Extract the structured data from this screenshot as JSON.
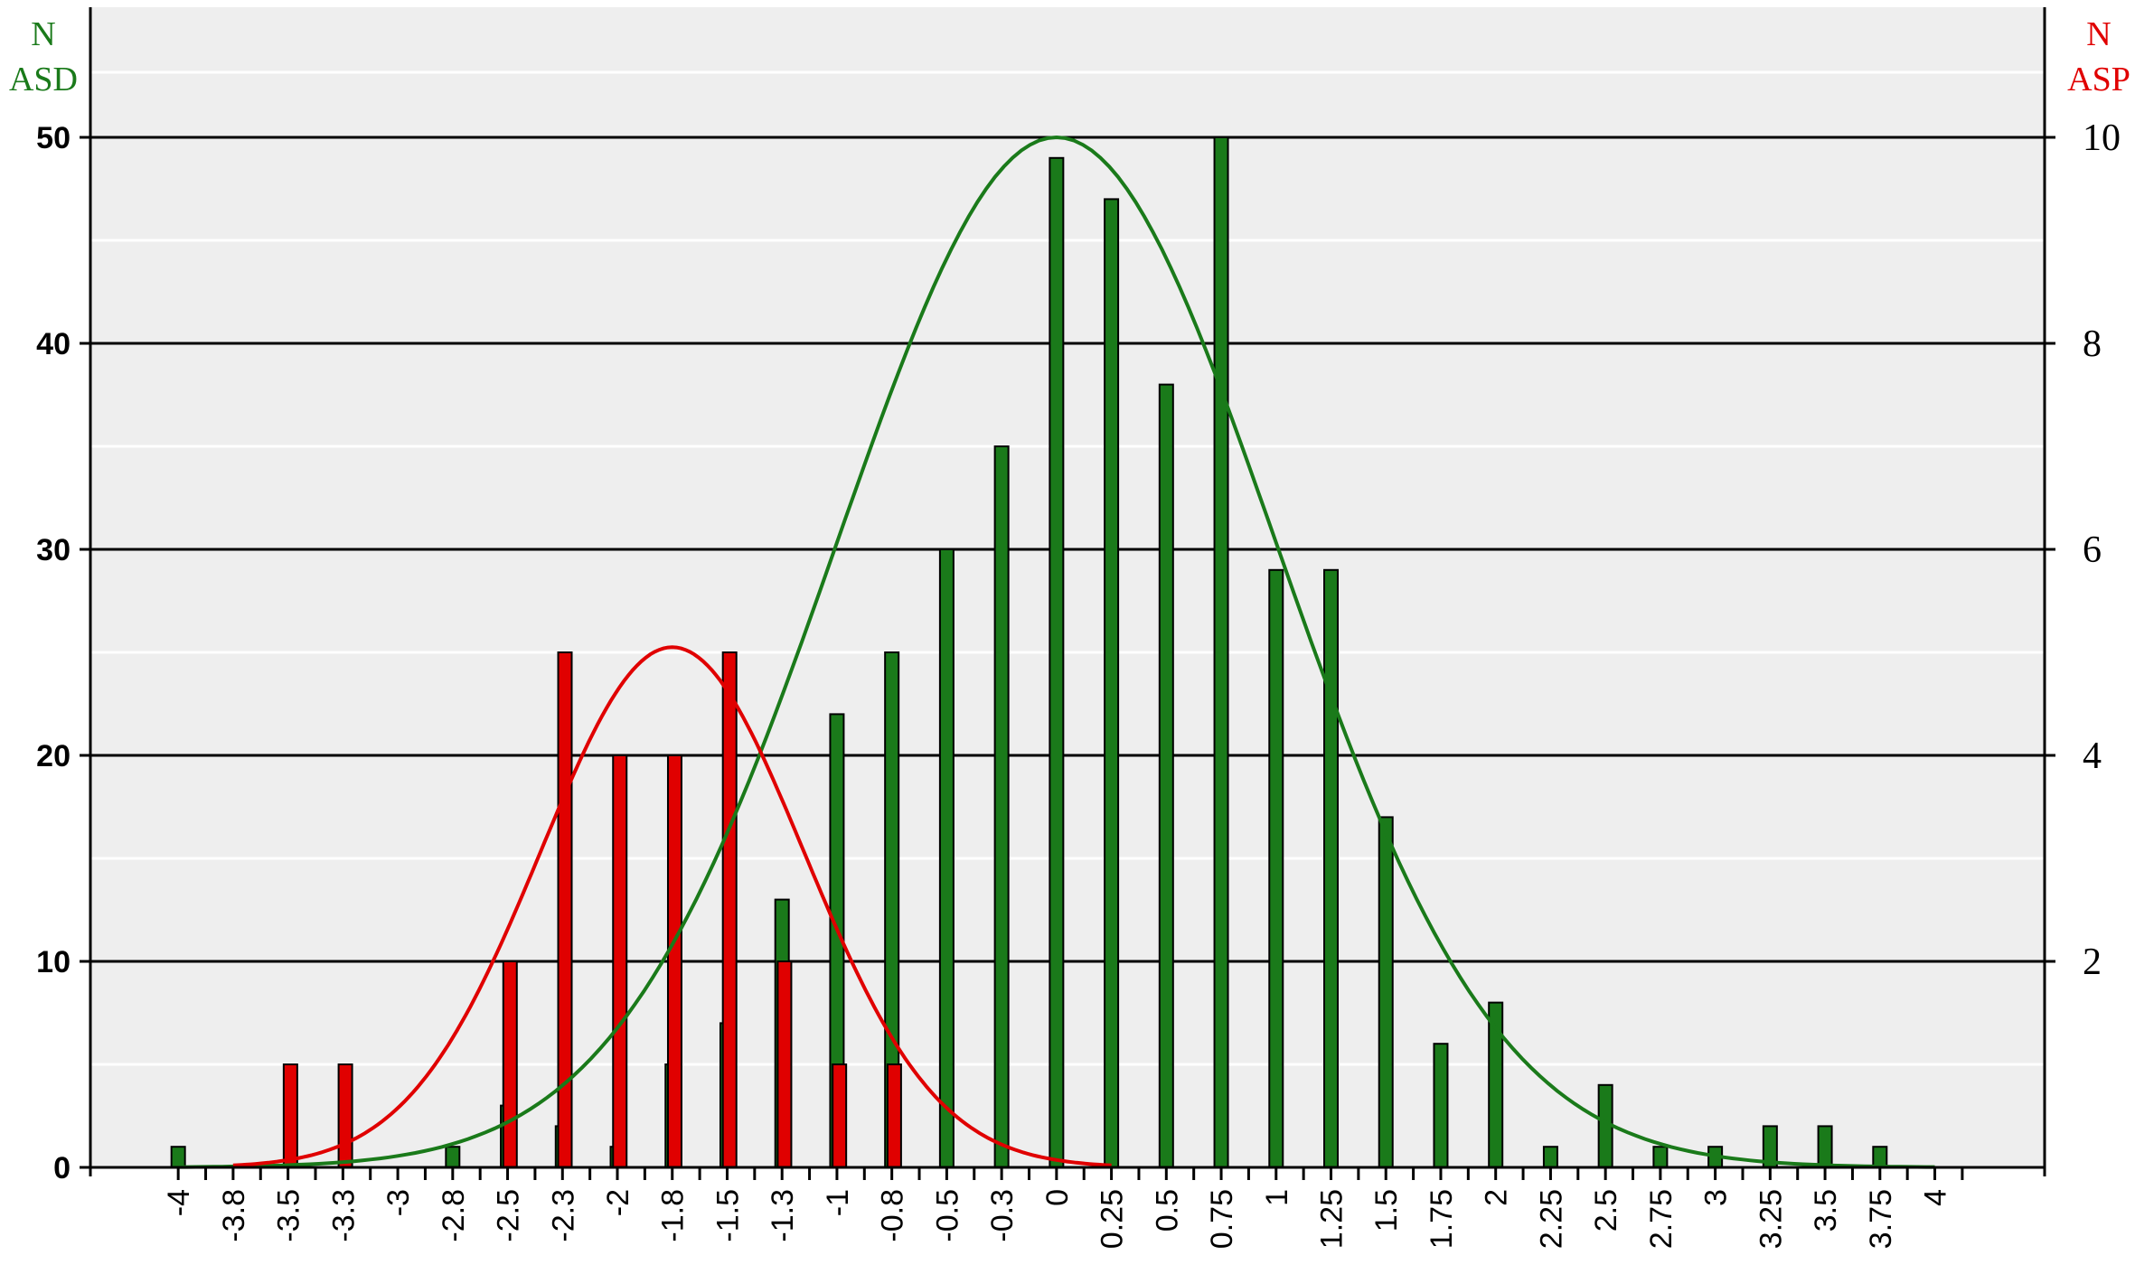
{
  "chart_data": {
    "type": "bar",
    "x_ticks": [
      "-4",
      "-3.8",
      "-3.5",
      "-3.3",
      "-3",
      "-2.8",
      "-2.5",
      "-2.3",
      "-2",
      "-1.8",
      "-1.5",
      "-1.3",
      "-1",
      "-0.8",
      "-0.5",
      "-0.3",
      "0",
      "0.25",
      "0.5",
      "0.75",
      "1",
      "1.25",
      "1.5",
      "1.75",
      "2",
      "2.25",
      "2.5",
      "2.75",
      "3",
      "3.25",
      "3.5",
      "3.75",
      "4"
    ],
    "y_left": {
      "title_lines": [
        "N",
        "ASD"
      ],
      "ticks": [
        "0",
        "10",
        "20",
        "30",
        "40",
        "50"
      ],
      "range": [
        0,
        50
      ],
      "color": "#1a7a1a"
    },
    "y_right": {
      "title_lines": [
        "N",
        "ASP"
      ],
      "ticks": [
        "2",
        "4",
        "6",
        "8",
        "10"
      ],
      "range": [
        0,
        10
      ],
      "color": "#e00000"
    },
    "series": [
      {
        "axis": "left",
        "color": "#1a7a1a",
        "values": [
          {
            "x": -4,
            "y": 1
          },
          {
            "x": -3.75,
            "y": 0
          },
          {
            "x": -3.5,
            "y": 0
          },
          {
            "x": -3.25,
            "y": 0
          },
          {
            "x": -3,
            "y": 0
          },
          {
            "x": -2.75,
            "y": 1
          },
          {
            "x": -2.5,
            "y": 3
          },
          {
            "x": -2.25,
            "y": 2
          },
          {
            "x": -2,
            "y": 1
          },
          {
            "x": -1.75,
            "y": 5
          },
          {
            "x": -1.5,
            "y": 7
          },
          {
            "x": -1.25,
            "y": 13
          },
          {
            "x": -1,
            "y": 22
          },
          {
            "x": -0.75,
            "y": 25
          },
          {
            "x": -0.5,
            "y": 30
          },
          {
            "x": -0.25,
            "y": 35
          },
          {
            "x": 0,
            "y": 49
          },
          {
            "x": 0.25,
            "y": 47
          },
          {
            "x": 0.5,
            "y": 38
          },
          {
            "x": 0.75,
            "y": 50
          },
          {
            "x": 1,
            "y": 29
          },
          {
            "x": 1.25,
            "y": 29
          },
          {
            "x": 1.5,
            "y": 17
          },
          {
            "x": 1.75,
            "y": 6
          },
          {
            "x": 2,
            "y": 8
          },
          {
            "x": 2.25,
            "y": 1
          },
          {
            "x": 2.5,
            "y": 4
          },
          {
            "x": 2.75,
            "y": 1
          },
          {
            "x": 3,
            "y": 1
          },
          {
            "x": 3.25,
            "y": 2
          },
          {
            "x": 3.5,
            "y": 2
          },
          {
            "x": 3.75,
            "y": 1
          }
        ],
        "curve": {
          "mean": 0,
          "sd": 1,
          "peak": 50
        }
      },
      {
        "axis": "right",
        "color": "#e00000",
        "values": [
          {
            "x": -3.25,
            "y": 1
          },
          {
            "x": -3,
            "y": 1
          },
          {
            "x": -2.25,
            "y": 2
          },
          {
            "x": -2,
            "y": 5
          },
          {
            "x": -1.75,
            "y": 4
          },
          {
            "x": -1.5,
            "y": 4
          },
          {
            "x": -1.25,
            "y": 5
          },
          {
            "x": -1,
            "y": 2
          },
          {
            "x": -0.75,
            "y": 1
          },
          {
            "x": -0.5,
            "y": 1
          }
        ],
        "curve": {
          "mean": -1.75,
          "sd": 0.6,
          "peak": 5.05,
          "x_range": [
            -3.75,
            0.25
          ]
        }
      }
    ],
    "grid": true,
    "legend": "none"
  }
}
